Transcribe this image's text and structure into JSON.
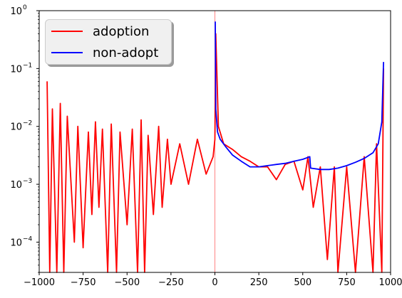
{
  "chart_data": {
    "type": "line",
    "title": "",
    "xlabel": "",
    "ylabel": "",
    "xlim": [
      -1000,
      1000
    ],
    "ylim": [
      3e-05,
      1.0
    ],
    "yscale": "log",
    "grid": false,
    "legend_position": "top-left",
    "x_ticks": [
      -1000,
      -750,
      -500,
      -250,
      0,
      250,
      500,
      750,
      1000
    ],
    "x_tick_labels": [
      "−1000",
      "−750",
      "−500",
      "−250",
      "0",
      "250",
      "500",
      "750",
      "1000"
    ],
    "y_ticks": [
      0.0001,
      0.001,
      0.01,
      0.1,
      1
    ],
    "y_tick_labels": [
      "10",
      "10",
      "10",
      "10",
      "10"
    ],
    "y_tick_exponents": [
      "−4",
      "−3",
      "−2",
      "−1",
      "0"
    ],
    "vertical_line": {
      "x": 0,
      "color": "#ff0000"
    },
    "series": [
      {
        "name": "adoption",
        "color": "#ff0000",
        "points": [
          [
            -955,
            0.06
          ],
          [
            -940,
            3e-05
          ],
          [
            -925,
            0.02
          ],
          [
            -900,
            3e-05
          ],
          [
            -880,
            0.025
          ],
          [
            -860,
            3e-05
          ],
          [
            -840,
            0.015
          ],
          [
            -800,
            0.0001
          ],
          [
            -780,
            0.01
          ],
          [
            -750,
            8e-05
          ],
          [
            -720,
            0.008
          ],
          [
            -700,
            0.0003
          ],
          [
            -680,
            0.012
          ],
          [
            -660,
            0.0004
          ],
          [
            -640,
            0.009
          ],
          [
            -610,
            3e-05
          ],
          [
            -590,
            0.011
          ],
          [
            -560,
            3e-05
          ],
          [
            -540,
            0.008
          ],
          [
            -500,
            0.0002
          ],
          [
            -470,
            0.009
          ],
          [
            -440,
            3e-05
          ],
          [
            -420,
            0.013
          ],
          [
            -400,
            3e-05
          ],
          [
            -380,
            0.007
          ],
          [
            -350,
            0.0003
          ],
          [
            -320,
            0.01
          ],
          [
            -300,
            0.0004
          ],
          [
            -270,
            0.006
          ],
          [
            -250,
            0.001
          ],
          [
            -200,
            0.005
          ],
          [
            -150,
            0.001
          ],
          [
            -100,
            0.006
          ],
          [
            -50,
            0.0015
          ],
          [
            -10,
            0.003
          ],
          [
            0,
            0.006
          ],
          [
            5,
            0.4
          ],
          [
            20,
            0.01
          ],
          [
            50,
            0.005
          ],
          [
            100,
            0.004
          ],
          [
            150,
            0.003
          ],
          [
            200,
            0.0025
          ],
          [
            250,
            0.002
          ],
          [
            300,
            0.002
          ],
          [
            350,
            0.0012
          ],
          [
            400,
            0.0022
          ],
          [
            450,
            0.0025
          ],
          [
            500,
            0.0008
          ],
          [
            530,
            0.003
          ],
          [
            560,
            0.0004
          ],
          [
            600,
            0.002
          ],
          [
            640,
            5e-05
          ],
          [
            680,
            0.002
          ],
          [
            700,
            3e-05
          ],
          [
            750,
            0.002
          ],
          [
            800,
            3e-05
          ],
          [
            850,
            0.003
          ],
          [
            900,
            3e-05
          ],
          [
            920,
            0.005
          ],
          [
            950,
            3e-05
          ],
          [
            960,
            0.1
          ]
        ]
      },
      {
        "name": "non-adopt",
        "color": "#0000ff",
        "points": [
          [
            2,
            0.65
          ],
          [
            5,
            0.02
          ],
          [
            15,
            0.008
          ],
          [
            30,
            0.006
          ],
          [
            60,
            0.0045
          ],
          [
            100,
            0.0032
          ],
          [
            150,
            0.0025
          ],
          [
            200,
            0.002
          ],
          [
            250,
            0.002
          ],
          [
            300,
            0.0021
          ],
          [
            350,
            0.0022
          ],
          [
            400,
            0.0023
          ],
          [
            450,
            0.0025
          ],
          [
            500,
            0.0027
          ],
          [
            540,
            0.003
          ],
          [
            545,
            0.0019
          ],
          [
            600,
            0.0018
          ],
          [
            650,
            0.0018
          ],
          [
            700,
            0.0019
          ],
          [
            750,
            0.0021
          ],
          [
            800,
            0.0024
          ],
          [
            850,
            0.0028
          ],
          [
            900,
            0.0035
          ],
          [
            930,
            0.005
          ],
          [
            950,
            0.012
          ],
          [
            960,
            0.13
          ]
        ]
      }
    ]
  },
  "legend": {
    "items": [
      {
        "label": "adoption",
        "color": "#ff0000"
      },
      {
        "label": "non-adopt",
        "color": "#0000ff"
      }
    ]
  }
}
